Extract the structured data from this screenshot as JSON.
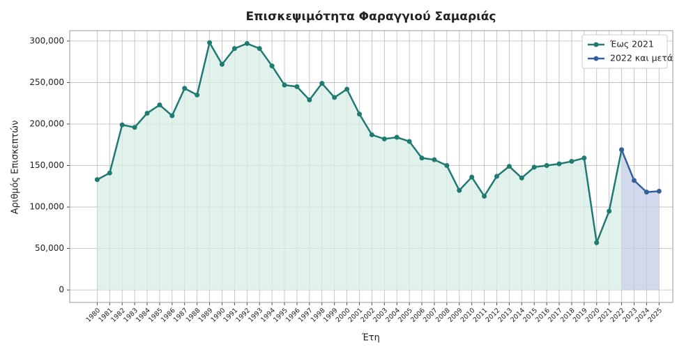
{
  "chart_data": {
    "type": "line",
    "title": "Επισκεψιμότητα Φαραγγιού Σαμαριάς",
    "xlabel": "Έτη",
    "ylabel": "Αριθμός Επισκεπτών",
    "x": [
      1980,
      1981,
      1982,
      1983,
      1984,
      1985,
      1986,
      1987,
      1988,
      1989,
      1990,
      1991,
      1992,
      1993,
      1994,
      1995,
      1996,
      1997,
      1998,
      1999,
      2000,
      2001,
      2002,
      2003,
      2004,
      2005,
      2006,
      2007,
      2008,
      2009,
      2010,
      2011,
      2012,
      2013,
      2014,
      2015,
      2016,
      2017,
      2018,
      2019,
      2020,
      2021,
      2022,
      2023,
      2024,
      2025
    ],
    "series": [
      {
        "name": "Έως 2021",
        "color": "#1f7a72",
        "fill": "#d6ede4",
        "values": [
          133000,
          141000,
          199000,
          196000,
          213000,
          223000,
          210000,
          243000,
          235000,
          298000,
          272000,
          291000,
          297000,
          291000,
          270000,
          247000,
          245000,
          229000,
          249000,
          232000,
          242000,
          212000,
          187000,
          182000,
          184000,
          179000,
          159000,
          157000,
          150000,
          120000,
          136000,
          113000,
          137000,
          149000,
          135000,
          148000,
          150000,
          152000,
          155000,
          159000,
          57000,
          95000,
          169000,
          null,
          null,
          null
        ]
      },
      {
        "name": "2022 και μετά",
        "color": "#35609b",
        "fill": "#c3cce6",
        "values": [
          null,
          null,
          null,
          null,
          null,
          null,
          null,
          null,
          null,
          null,
          null,
          null,
          null,
          null,
          null,
          null,
          null,
          null,
          null,
          null,
          null,
          null,
          null,
          null,
          null,
          null,
          null,
          null,
          null,
          null,
          null,
          null,
          null,
          null,
          null,
          null,
          null,
          null,
          null,
          null,
          null,
          null,
          169000,
          132000,
          118000,
          119000
        ]
      }
    ],
    "xlim": [
      1977.8,
      2026.1
    ],
    "xticks": [
      1980,
      1981,
      1982,
      1983,
      1984,
      1985,
      1986,
      1987,
      1988,
      1989,
      1990,
      1991,
      1992,
      1993,
      1994,
      1995,
      1996,
      1997,
      1998,
      1999,
      2000,
      2001,
      2002,
      2003,
      2004,
      2005,
      2006,
      2007,
      2008,
      2009,
      2010,
      2011,
      2012,
      2013,
      2014,
      2015,
      2016,
      2017,
      2018,
      2019,
      2020,
      2021,
      2022,
      2023,
      2024,
      2025
    ],
    "ylim": [
      -15000,
      312500
    ],
    "yticks": [
      0,
      {
        "value": 50000,
        "label": "50,000"
      },
      {
        "value": 100000,
        "label": "100,000"
      },
      {
        "value": 150000,
        "label": "150,000"
      },
      {
        "value": 200000,
        "label": "200,000"
      },
      {
        "value": 250000,
        "label": "250,000"
      },
      {
        "value": 300000,
        "label": "300,000"
      }
    ],
    "grid": true,
    "legend": "upper right"
  }
}
